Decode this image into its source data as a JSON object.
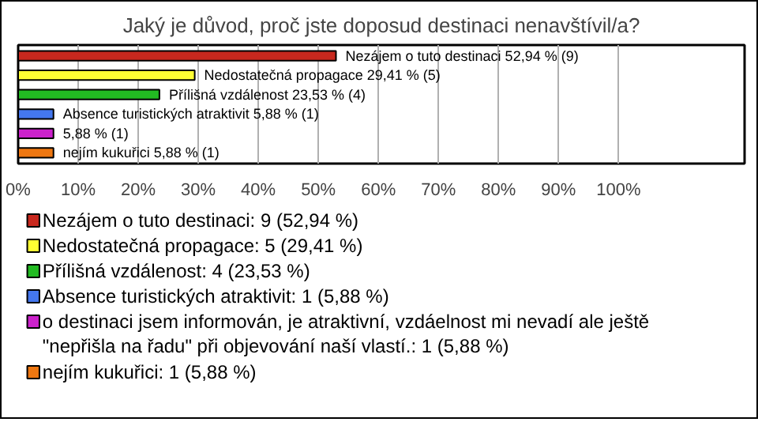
{
  "chart_data": {
    "type": "bar",
    "orientation": "horizontal",
    "title": "Jaký je důvod, proč jste doposud destinaci nenavštívil/a?",
    "categories": [
      null,
      null,
      null,
      null,
      null,
      null
    ],
    "series": [
      {
        "name": "Nezájem o tuto destinaci: 9 (52,94 %)",
        "color": "#c8281e",
        "values": [
          52.94,
          null,
          null,
          null,
          null,
          null
        ],
        "value_labels": [
          "Nezájem o tuto destinaci 52,94 % (9)",
          null,
          null,
          null,
          null,
          null
        ]
      },
      {
        "name": "Nedostatečná propagace: 5 (29,41 %)",
        "color": "#ffff33",
        "values": [
          null,
          29.41,
          null,
          null,
          null,
          null
        ],
        "value_labels": [
          null,
          "Nedostatečná propagace 29,41 % (5)",
          null,
          null,
          null,
          null
        ]
      },
      {
        "name": "Přílišná vzdálenost: 4 (23,53 %)",
        "color": "#22bb22",
        "values": [
          null,
          null,
          23.53,
          null,
          null,
          null
        ],
        "value_labels": [
          null,
          null,
          "Přílišná vzdálenost 23,53 % (4)",
          null,
          null,
          null
        ]
      },
      {
        "name": "Absence turistických atraktivit: 1 (5,88 %)",
        "color": "#4477ee",
        "values": [
          null,
          null,
          null,
          5.88,
          null,
          null
        ],
        "value_labels": [
          null,
          null,
          null,
          "Absence turistických atraktivit 5,88 % (1)",
          null,
          null
        ]
      },
      {
        "name": "o destinaci jsem informován, je atraktivní, vzdáelnost mi nevadí ale ještě \"nepřišla na řadu\" při objevování naší vlastí.: 1 (5,88 %)",
        "color": "#cc22cc",
        "values": [
          null,
          null,
          null,
          null,
          5.88,
          null
        ],
        "value_labels": [
          null,
          null,
          null,
          null,
          "5,88 % (1)",
          null
        ]
      },
      {
        "name": "nejím kukuřici: 1 (5,88 %)",
        "color": "#ee7711",
        "values": [
          null,
          null,
          null,
          null,
          null,
          5.88
        ],
        "value_labels": [
          null,
          null,
          null,
          null,
          null,
          "nejím kukuřici 5,88 % (1)"
        ]
      }
    ],
    "xlim": [
      0,
      121
    ],
    "xticks": [
      {
        "value": 0,
        "label": "0%"
      },
      {
        "value": 10,
        "label": "10%"
      },
      {
        "value": 20,
        "label": "20%"
      },
      {
        "value": 30,
        "label": "30%"
      },
      {
        "value": 40,
        "label": "40%"
      },
      {
        "value": 50,
        "label": "50%"
      },
      {
        "value": 60,
        "label": "60%"
      },
      {
        "value": 70,
        "label": "70%"
      },
      {
        "value": 80,
        "label": "80%"
      },
      {
        "value": 90,
        "label": "90%"
      },
      {
        "value": 100,
        "label": "100%"
      }
    ],
    "grid": "x",
    "legend": "bottom"
  }
}
